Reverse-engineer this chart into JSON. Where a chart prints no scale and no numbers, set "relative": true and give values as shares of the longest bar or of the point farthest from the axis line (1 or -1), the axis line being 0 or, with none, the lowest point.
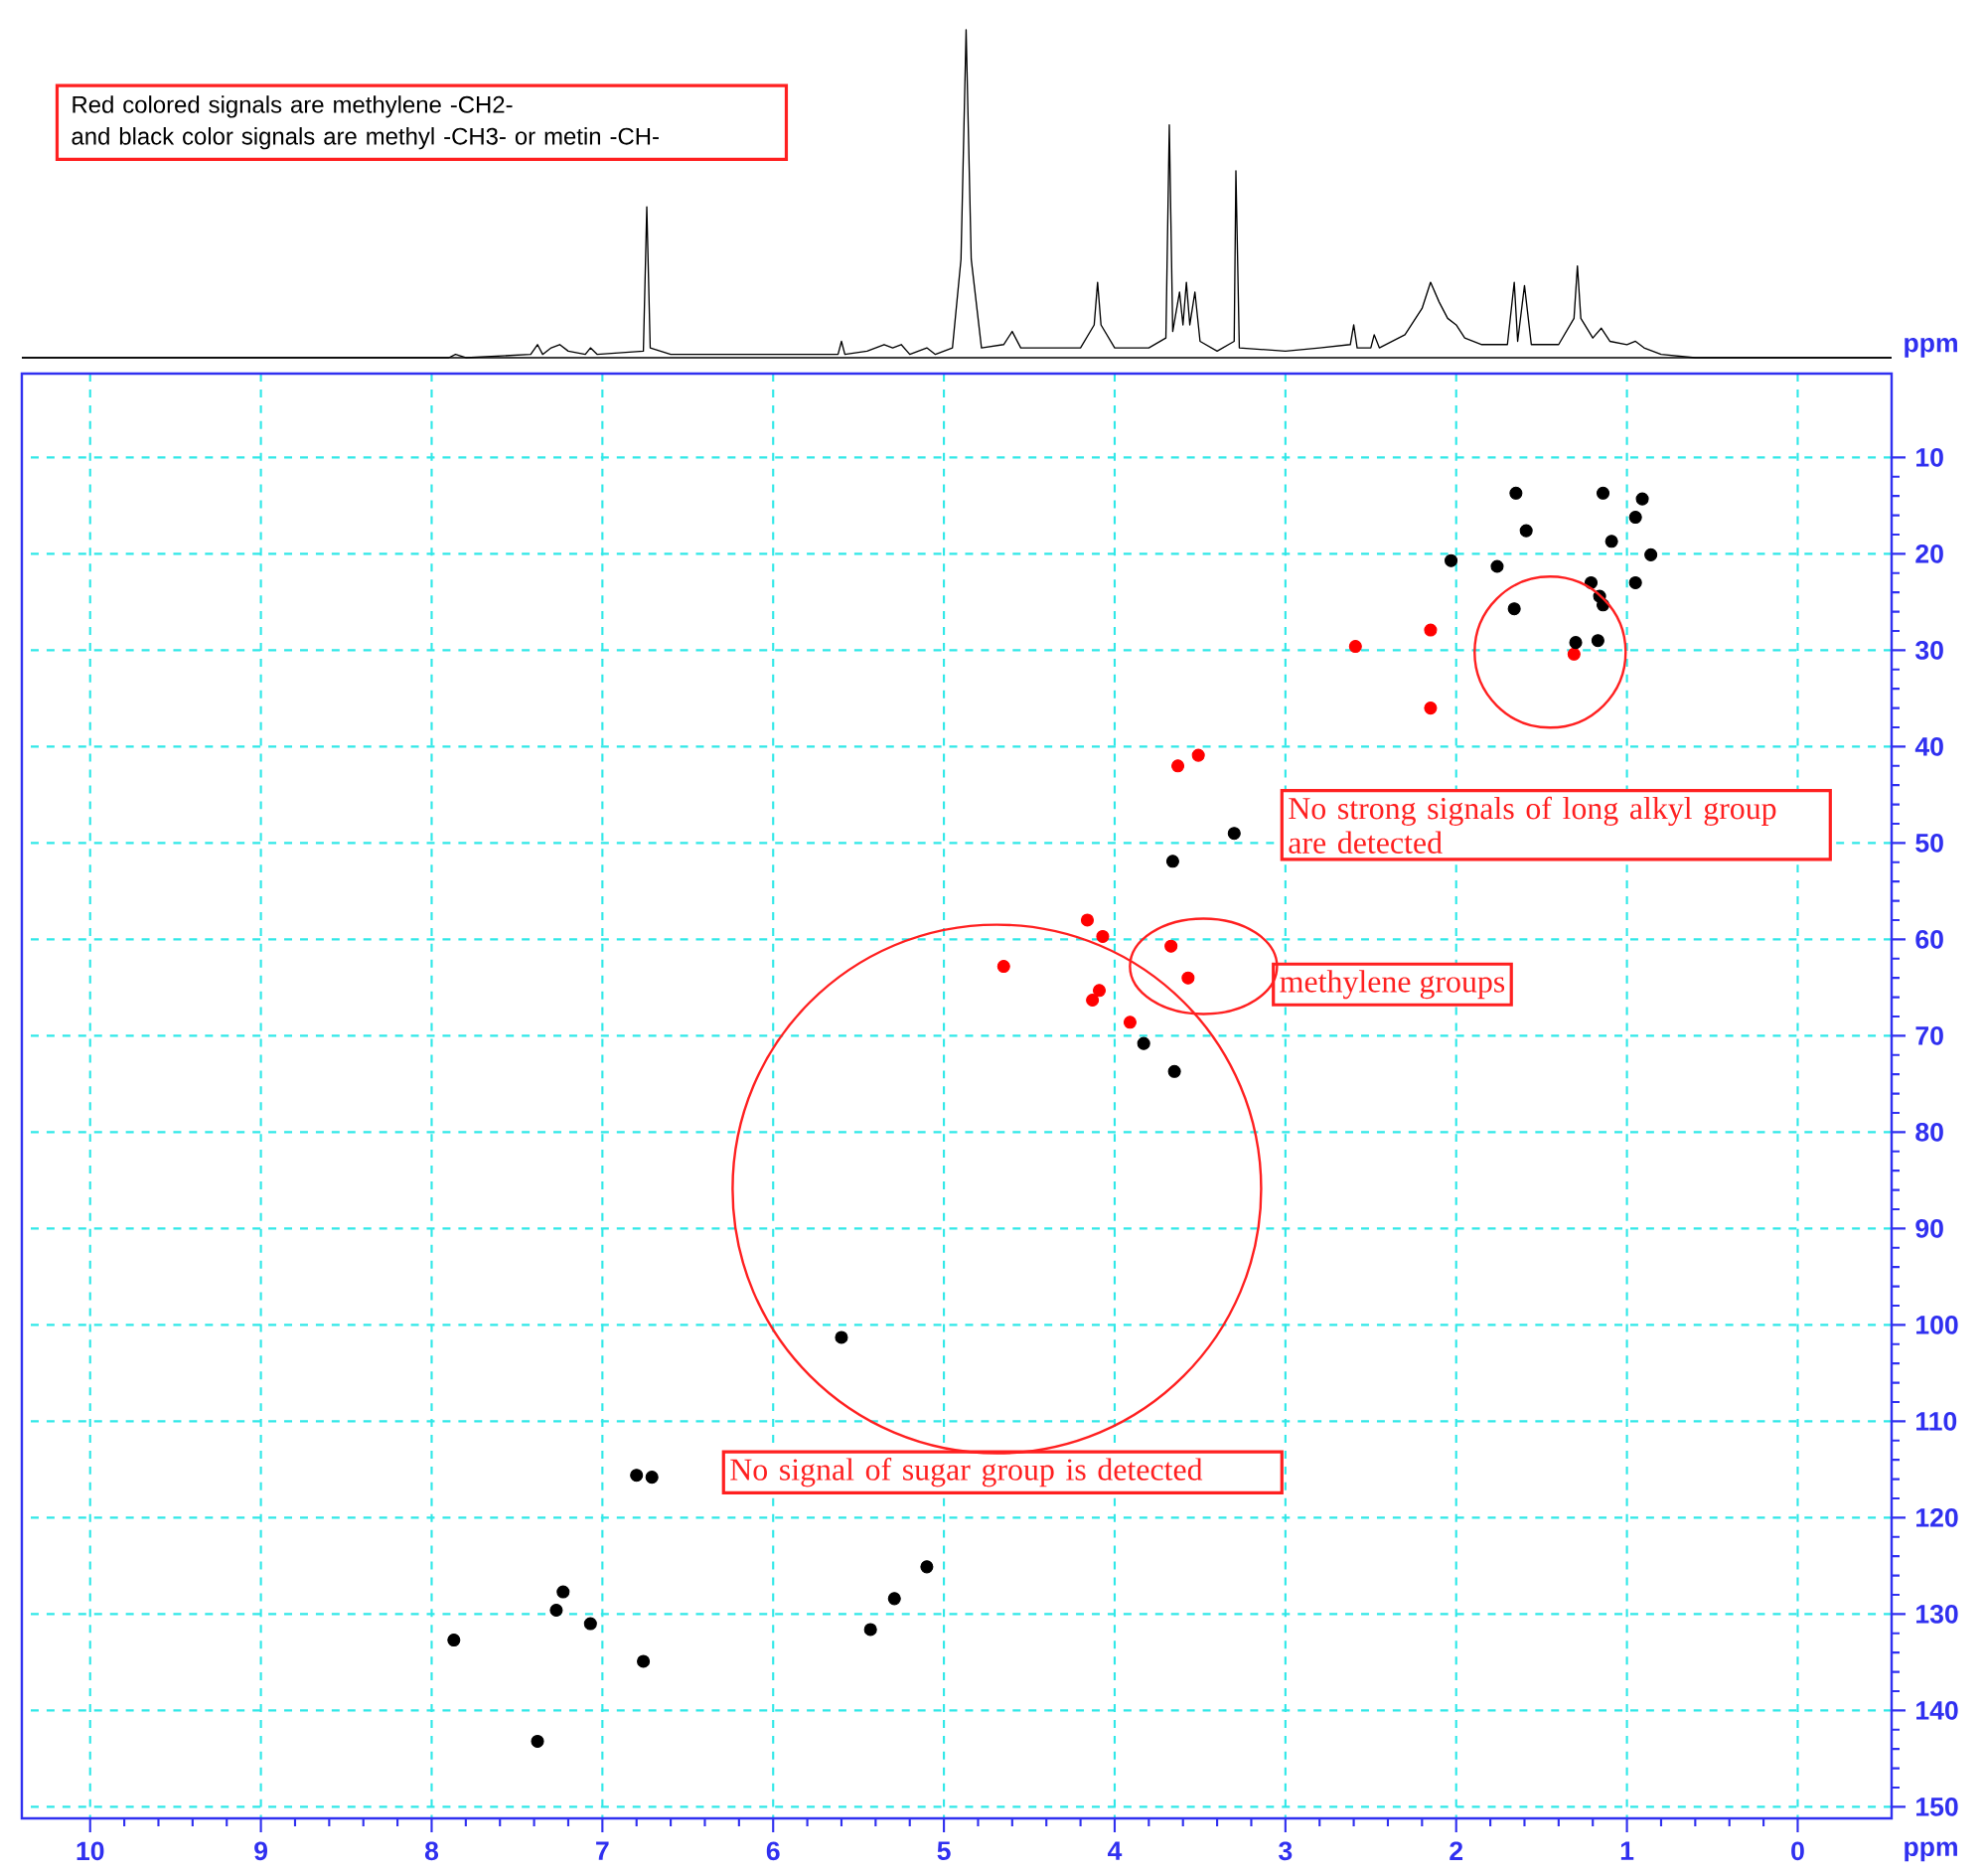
{
  "chart_data": [
    {
      "type": "line",
      "relative": true,
      "xlim": [
        10.4,
        -0.55
      ],
      "color": "#000000",
      "x": [
        10.4,
        7.9,
        7.86,
        7.8,
        7.42,
        7.38,
        7.35,
        7.3,
        7.25,
        7.2,
        7.1,
        7.07,
        7.03,
        6.76,
        6.74,
        6.72,
        6.6,
        5.62,
        5.6,
        5.58,
        5.45,
        5.35,
        5.3,
        5.25,
        5.2,
        5.1,
        5.05,
        4.95,
        4.9,
        4.87,
        4.84,
        4.78,
        4.65,
        4.6,
        4.55,
        4.2,
        4.12,
        4.1,
        4.08,
        4.0,
        3.8,
        3.7,
        3.68,
        3.66,
        3.62,
        3.6,
        3.58,
        3.56,
        3.53,
        3.5,
        3.4,
        3.3,
        3.29,
        3.27,
        3.0,
        2.8,
        2.62,
        2.6,
        2.58,
        2.5,
        2.48,
        2.45,
        2.3,
        2.2,
        2.15,
        2.1,
        2.05,
        2.0,
        1.95,
        1.85,
        1.7,
        1.66,
        1.64,
        1.6,
        1.56,
        1.4,
        1.31,
        1.29,
        1.27,
        1.2,
        1.15,
        1.1,
        1.0,
        0.95,
        0.9,
        0.8,
        0.6,
        -0.55
      ],
      "values": [
        0.0,
        0.0,
        0.01,
        0.0,
        0.01,
        0.04,
        0.01,
        0.03,
        0.04,
        0.02,
        0.01,
        0.03,
        0.01,
        0.02,
        0.46,
        0.03,
        0.01,
        0.01,
        0.05,
        0.01,
        0.02,
        0.04,
        0.03,
        0.04,
        0.01,
        0.03,
        0.01,
        0.03,
        0.3,
        1.0,
        0.3,
        0.03,
        0.04,
        0.08,
        0.03,
        0.03,
        0.1,
        0.23,
        0.1,
        0.03,
        0.03,
        0.06,
        0.71,
        0.08,
        0.2,
        0.1,
        0.23,
        0.1,
        0.2,
        0.05,
        0.02,
        0.05,
        0.57,
        0.03,
        0.02,
        0.03,
        0.04,
        0.1,
        0.03,
        0.03,
        0.07,
        0.03,
        0.07,
        0.15,
        0.23,
        0.17,
        0.12,
        0.1,
        0.06,
        0.04,
        0.04,
        0.23,
        0.05,
        0.22,
        0.04,
        0.04,
        0.12,
        0.28,
        0.12,
        0.06,
        0.09,
        0.05,
        0.04,
        0.05,
        0.03,
        0.01,
        0.0,
        0.0
      ],
      "annotations": [
        "Red colored signals are methylene -CH2-",
        "and black color signals are methyl -CH3- or metin -CH-"
      ]
    },
    {
      "type": "scatter",
      "xlim": [
        10.4,
        -0.55
      ],
      "ylim": [
        151.2,
        1.3
      ],
      "xticks": [
        10,
        9,
        8,
        7,
        6,
        5,
        4,
        3,
        2,
        1,
        0
      ],
      "yticks": [
        10,
        20,
        30,
        40,
        50,
        60,
        70,
        80,
        90,
        100,
        110,
        120,
        130,
        140,
        150
      ],
      "xlabel": "ppm",
      "ylabel": "ppm",
      "grid": true,
      "marker": "circle",
      "series": [
        {
          "color": "#ff0000",
          "x": [
            2.59,
            2.15,
            2.15,
            1.31,
            3.63,
            3.51,
            4.65,
            4.16,
            4.07,
            4.13,
            4.09,
            3.91,
            3.67,
            3.57
          ],
          "values": [
            29.6,
            27.9,
            36.0,
            30.4,
            42.0,
            40.9,
            62.8,
            58.0,
            59.7,
            66.3,
            65.3,
            68.6,
            60.7,
            64.0
          ]
        },
        {
          "color": "#000000",
          "x": [
            1.65,
            1.59,
            2.03,
            1.76,
            1.66,
            1.14,
            1.16,
            1.3,
            1.17,
            1.14,
            0.91,
            0.95,
            1.09,
            0.86,
            0.95,
            1.21,
            3.3,
            3.66,
            3.83,
            3.65,
            5.6,
            6.71,
            6.8,
            7.23,
            7.27,
            7.07,
            6.76,
            7.38,
            7.87,
            5.1,
            5.29,
            5.43
          ],
          "values": [
            13.7,
            17.6,
            20.7,
            21.3,
            25.7,
            25.3,
            24.4,
            29.2,
            29.0,
            13.7,
            14.3,
            16.2,
            18.7,
            20.1,
            23.0,
            23.0,
            49.0,
            51.9,
            70.8,
            73.7,
            101.3,
            115.8,
            115.6,
            127.7,
            129.6,
            131.0,
            134.9,
            143.2,
            132.7,
            125.1,
            128.4,
            131.6
          ]
        }
      ],
      "annotations": [
        "No strong signals of long alkyl group are detected",
        "methylene groups",
        "No signal of sugar group is detected"
      ]
    }
  ]
}
